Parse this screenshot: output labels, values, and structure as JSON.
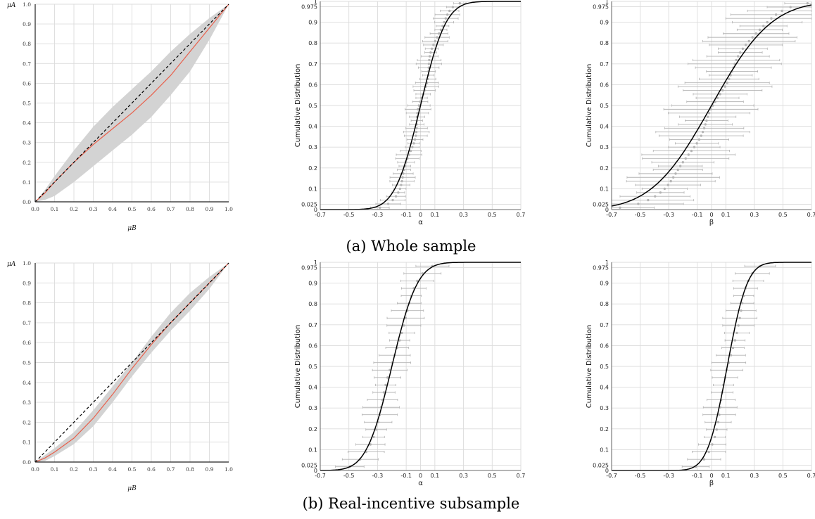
{
  "captions": {
    "whole": "(a) Whole sample",
    "real": "(b) Real-incentive subsample"
  },
  "colors": {
    "band": "#d3d3d3",
    "red_line": "#e8604c",
    "dashed": "#000000",
    "cdf": "#000000",
    "points": "#b4b4b4"
  },
  "chart_data": [
    {
      "id": "whole-mu",
      "type": "area",
      "xlabel": "μB",
      "ylabel": "μA",
      "xlim": [
        0,
        1
      ],
      "ylim": [
        0,
        1
      ],
      "xticks": [
        0.0,
        0.1,
        0.2,
        0.3,
        0.4,
        0.5,
        0.6,
        0.7,
        0.8,
        0.9,
        1.0
      ],
      "yticks": [
        0.0,
        0.1,
        0.2,
        0.3,
        0.4,
        0.5,
        0.6,
        0.7,
        0.8,
        0.9,
        1.0
      ],
      "grid": true,
      "x": [
        0,
        0.05,
        0.1,
        0.2,
        0.3,
        0.4,
        0.5,
        0.6,
        0.7,
        0.8,
        0.9,
        1.0
      ],
      "series": [
        {
          "values": [
            0,
            0.045,
            0.1,
            0.2,
            0.29,
            0.37,
            0.45,
            0.54,
            0.64,
            0.76,
            0.88,
            1.0
          ]
        },
        {
          "values": [
            0,
            0.06,
            0.13,
            0.26,
            0.38,
            0.48,
            0.57,
            0.66,
            0.76,
            0.85,
            0.93,
            1.0
          ]
        },
        {
          "values": [
            0,
            0.01,
            0.03,
            0.1,
            0.18,
            0.26,
            0.34,
            0.43,
            0.54,
            0.66,
            0.82,
            1.0
          ]
        },
        {
          "values": [
            0,
            0.05,
            0.1,
            0.2,
            0.3,
            0.4,
            0.5,
            0.6,
            0.7,
            0.8,
            0.9,
            1.0
          ]
        }
      ]
    },
    {
      "id": "whole-alpha",
      "type": "line",
      "xlabel": "α",
      "ylabel": "Cumulative Distribution",
      "xlim": [
        -0.7,
        0.7
      ],
      "ylim": [
        0,
        1
      ],
      "xticks": [
        "-0.7",
        "-0.5",
        "-0.3",
        "-0.1",
        "0",
        "0.1",
        "0.3",
        "0.5",
        "0.7"
      ],
      "yticks": [
        "0",
        "0.025",
        "0.1",
        "0.2",
        "0.3",
        "0.4",
        "0.5",
        "0.6",
        "0.7",
        "0.8",
        "0.9",
        "0.975",
        "1"
      ],
      "grid": true,
      "cdf": {
        "mean": 0.0,
        "sd": 0.14
      },
      "points": {
        "n": 55,
        "center_mean": 0.0,
        "center_sd": 0.12,
        "ci_halfwidth": [
          0.04,
          0.09
        ]
      }
    },
    {
      "id": "whole-beta",
      "type": "line",
      "xlabel": "β",
      "ylabel": "Cumulative Distribution",
      "xlim": [
        -0.7,
        0.7
      ],
      "ylim": [
        0,
        1
      ],
      "xticks": [
        "-0.7",
        "-0.5",
        "-0.3",
        "-0.1",
        "0",
        "0.1",
        "0.3",
        "0.5",
        "0.7"
      ],
      "yticks": [
        "0",
        "0.025",
        "0.1",
        "0.2",
        "0.3",
        "0.4",
        "0.5",
        "0.6",
        "0.7",
        "0.8",
        "0.9",
        "0.975",
        "1"
      ],
      "grid": true,
      "cdf": {
        "mean": 0.0,
        "sd": 0.33
      },
      "points": {
        "n": 55,
        "center_mean": 0.02,
        "center_sd": 0.28,
        "ci_halfwidth": [
          0.15,
          0.33
        ]
      }
    },
    {
      "id": "real-mu",
      "type": "area",
      "xlabel": "μB",
      "ylabel": "μA",
      "xlim": [
        0,
        1
      ],
      "ylim": [
        0,
        1
      ],
      "xticks": [
        0.0,
        0.1,
        0.2,
        0.3,
        0.4,
        0.5,
        0.6,
        0.7,
        0.8,
        0.9,
        1.0
      ],
      "yticks": [
        0.0,
        0.1,
        0.2,
        0.3,
        0.4,
        0.5,
        0.6,
        0.7,
        0.8,
        0.9,
        1.0
      ],
      "grid": true,
      "x": [
        0,
        0.05,
        0.1,
        0.2,
        0.3,
        0.4,
        0.5,
        0.6,
        0.7,
        0.8,
        0.9,
        1.0
      ],
      "series": [
        {
          "values": [
            0,
            0.02,
            0.05,
            0.12,
            0.22,
            0.34,
            0.47,
            0.59,
            0.7,
            0.8,
            0.9,
            1.0
          ]
        },
        {
          "values": [
            0,
            0.035,
            0.07,
            0.15,
            0.26,
            0.38,
            0.5,
            0.63,
            0.75,
            0.85,
            0.93,
            1.0
          ]
        },
        {
          "values": [
            0,
            0.005,
            0.03,
            0.09,
            0.18,
            0.3,
            0.43,
            0.55,
            0.66,
            0.76,
            0.87,
            1.0
          ]
        },
        {
          "values": [
            0,
            0.05,
            0.1,
            0.2,
            0.3,
            0.4,
            0.5,
            0.6,
            0.7,
            0.8,
            0.9,
            1.0
          ]
        }
      ]
    },
    {
      "id": "real-alpha",
      "type": "line",
      "xlabel": "α",
      "ylabel": "Cumulative Distribution",
      "xlim": [
        -0.7,
        0.7
      ],
      "ylim": [
        0,
        1
      ],
      "xticks": [
        "-0.7",
        "-0.5",
        "-0.3",
        "-0.1",
        "0",
        "0.1",
        "0.3",
        "0.5",
        "0.7"
      ],
      "yticks": [
        "0",
        "0.025",
        "0.1",
        "0.2",
        "0.3",
        "0.4",
        "0.5",
        "0.6",
        "0.7",
        "0.8",
        "0.9",
        "0.975",
        "1"
      ],
      "grid": true,
      "cdf": {
        "mean": -0.2,
        "sd": 0.14
      },
      "points": {
        "n": 28,
        "center_mean": -0.2,
        "center_sd": 0.14,
        "ci_halfwidth": [
          0.07,
          0.13
        ]
      }
    },
    {
      "id": "real-beta",
      "type": "line",
      "xlabel": "β",
      "ylabel": "Cumulative Distribution",
      "xlim": [
        -0.7,
        0.7
      ],
      "ylim": [
        0,
        1
      ],
      "xticks": [
        "-0.7",
        "-0.5",
        "-0.3",
        "-0.1",
        "0",
        "0.1",
        "0.3",
        "0.5",
        "0.7"
      ],
      "yticks": [
        "0",
        "0.025",
        "0.1",
        "0.2",
        "0.3",
        "0.4",
        "0.5",
        "0.6",
        "0.7",
        "0.8",
        "0.9",
        "0.975",
        "1"
      ],
      "grid": true,
      "cdf": {
        "mean": 0.11,
        "sd": 0.11
      },
      "points": {
        "n": 28,
        "center_mean": 0.12,
        "center_sd": 0.11,
        "ci_halfwidth": [
          0.07,
          0.12
        ]
      }
    }
  ]
}
